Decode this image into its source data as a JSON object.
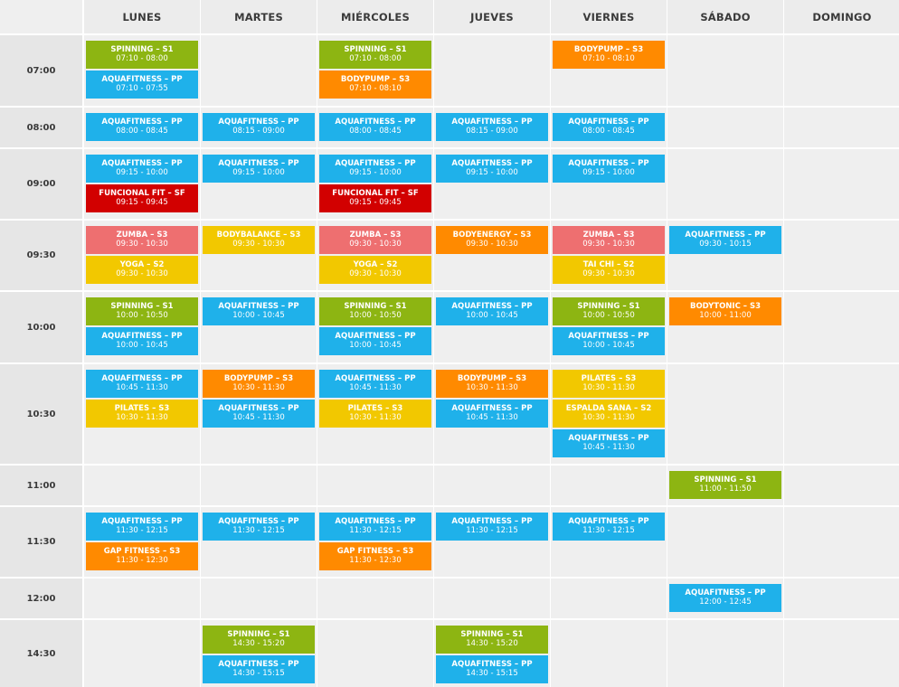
{
  "colors": {
    "aquafitness": "#1fb1ea",
    "spinning": "#8db512",
    "bodypump": "#ff8a00",
    "funcional": "#d20000",
    "zumba": "#ee6f70",
    "yoga": "#f2c800",
    "bodybalance": "#f2c800",
    "bodyenergy": "#ff8a00",
    "taichi": "#f2c800",
    "bodytonic": "#ff8a00",
    "pilates": "#f2c800",
    "espalda": "#f2c800",
    "gap": "#ff8a00"
  },
  "days": [
    "LUNES",
    "MARTES",
    "MIÉRCOLES",
    "JUEVES",
    "VIERNES",
    "SÁBADO",
    "DOMINGO"
  ],
  "rows": [
    {
      "time": "07:00",
      "classes": [
        {
          "day": 0,
          "slot": 0,
          "title": "SPINNING – S1",
          "hours": "07:10 - 08:00",
          "kind": "spinning"
        },
        {
          "day": 0,
          "slot": 1,
          "title": "AQUAFITNESS – PP",
          "hours": "07:10 - 07:55",
          "kind": "aquafitness"
        },
        {
          "day": 2,
          "slot": 0,
          "title": "SPINNING – S1",
          "hours": "07:10 - 08:00",
          "kind": "spinning"
        },
        {
          "day": 2,
          "slot": 1,
          "title": "BODYPUMP – S3",
          "hours": "07:10 - 08:10",
          "kind": "bodypump"
        },
        {
          "day": 4,
          "slot": 0,
          "title": "BODYPUMP – S3",
          "hours": "07:10 - 08:10",
          "kind": "bodypump"
        }
      ]
    },
    {
      "time": "08:00",
      "classes": [
        {
          "day": 0,
          "slot": 0,
          "title": "AQUAFITNESS – PP",
          "hours": "08:00 - 08:45",
          "kind": "aquafitness"
        },
        {
          "day": 1,
          "slot": 0,
          "title": "AQUAFITNESS – PP",
          "hours": "08:15 - 09:00",
          "kind": "aquafitness"
        },
        {
          "day": 2,
          "slot": 0,
          "title": "AQUAFITNESS – PP",
          "hours": "08:00 - 08:45",
          "kind": "aquafitness"
        },
        {
          "day": 3,
          "slot": 0,
          "title": "AQUAFITNESS – PP",
          "hours": "08:15 - 09:00",
          "kind": "aquafitness"
        },
        {
          "day": 4,
          "slot": 0,
          "title": "AQUAFITNESS – PP",
          "hours": "08:00 - 08:45",
          "kind": "aquafitness"
        }
      ]
    },
    {
      "time": "09:00",
      "classes": [
        {
          "day": 0,
          "slot": 0,
          "title": "AQUAFITNESS – PP",
          "hours": "09:15 - 10:00",
          "kind": "aquafitness"
        },
        {
          "day": 0,
          "slot": 1,
          "title": "FUNCIONAL FIT – SF",
          "hours": "09:15 - 09:45",
          "kind": "funcional"
        },
        {
          "day": 1,
          "slot": 0,
          "title": "AQUAFITNESS – PP",
          "hours": "09:15 - 10:00",
          "kind": "aquafitness"
        },
        {
          "day": 2,
          "slot": 0,
          "title": "AQUAFITNESS – PP",
          "hours": "09:15 - 10:00",
          "kind": "aquafitness"
        },
        {
          "day": 2,
          "slot": 1,
          "title": "FUNCIONAL FIT – SF",
          "hours": "09:15 - 09:45",
          "kind": "funcional"
        },
        {
          "day": 3,
          "slot": 0,
          "title": "AQUAFITNESS – PP",
          "hours": "09:15 - 10:00",
          "kind": "aquafitness"
        },
        {
          "day": 4,
          "slot": 0,
          "title": "AQUAFITNESS – PP",
          "hours": "09:15 - 10:00",
          "kind": "aquafitness"
        }
      ]
    },
    {
      "time": "09:30",
      "classes": [
        {
          "day": 0,
          "slot": 0,
          "title": "ZUMBA – S3",
          "hours": "09:30 - 10:30",
          "kind": "zumba"
        },
        {
          "day": 0,
          "slot": 1,
          "title": "YOGA – S2",
          "hours": "09:30 - 10:30",
          "kind": "yoga"
        },
        {
          "day": 1,
          "slot": 0,
          "title": "BODYBALANCE – S3",
          "hours": "09:30 - 10:30",
          "kind": "bodybalance"
        },
        {
          "day": 2,
          "slot": 0,
          "title": "ZUMBA – S3",
          "hours": "09:30 - 10:30",
          "kind": "zumba"
        },
        {
          "day": 2,
          "slot": 1,
          "title": "YOGA – S2",
          "hours": "09:30 - 10:30",
          "kind": "yoga"
        },
        {
          "day": 3,
          "slot": 0,
          "title": "BODYENERGY – S3",
          "hours": "09:30 - 10:30",
          "kind": "bodyenergy"
        },
        {
          "day": 4,
          "slot": 0,
          "title": "ZUMBA – S3",
          "hours": "09:30 - 10:30",
          "kind": "zumba"
        },
        {
          "day": 4,
          "slot": 1,
          "title": "TAI CHI – S2",
          "hours": "09:30 - 10:30",
          "kind": "taichi"
        },
        {
          "day": 5,
          "slot": 0,
          "title": "AQUAFITNESS – PP",
          "hours": "09:30 - 10:15",
          "kind": "aquafitness"
        }
      ]
    },
    {
      "time": "10:00",
      "classes": [
        {
          "day": 0,
          "slot": 0,
          "title": "SPINNING – S1",
          "hours": "10:00 - 10:50",
          "kind": "spinning"
        },
        {
          "day": 0,
          "slot": 1,
          "title": "AQUAFITNESS – PP",
          "hours": "10:00 - 10:45",
          "kind": "aquafitness"
        },
        {
          "day": 1,
          "slot": 0,
          "title": "AQUAFITNESS – PP",
          "hours": "10:00 - 10:45",
          "kind": "aquafitness"
        },
        {
          "day": 2,
          "slot": 0,
          "title": "SPINNING – S1",
          "hours": "10:00 - 10:50",
          "kind": "spinning"
        },
        {
          "day": 2,
          "slot": 1,
          "title": "AQUAFITNESS – PP",
          "hours": "10:00 - 10:45",
          "kind": "aquafitness"
        },
        {
          "day": 3,
          "slot": 0,
          "title": "AQUAFITNESS – PP",
          "hours": "10:00 - 10:45",
          "kind": "aquafitness"
        },
        {
          "day": 4,
          "slot": 0,
          "title": "SPINNING – S1",
          "hours": "10:00 - 10:50",
          "kind": "spinning"
        },
        {
          "day": 4,
          "slot": 1,
          "title": "AQUAFITNESS – PP",
          "hours": "10:00 - 10:45",
          "kind": "aquafitness"
        },
        {
          "day": 5,
          "slot": 0,
          "title": "BODYTONIC – S3",
          "hours": "10:00 - 11:00",
          "kind": "bodytonic"
        }
      ]
    },
    {
      "time": "10:30",
      "classes": [
        {
          "day": 0,
          "slot": 0,
          "title": "AQUAFITNESS – PP",
          "hours": "10:45 - 11:30",
          "kind": "aquafitness"
        },
        {
          "day": 0,
          "slot": 1,
          "title": "PILATES – S3",
          "hours": "10:30 - 11:30",
          "kind": "pilates"
        },
        {
          "day": 1,
          "slot": 0,
          "title": "BODYPUMP – S3",
          "hours": "10:30 - 11:30",
          "kind": "bodypump"
        },
        {
          "day": 1,
          "slot": 1,
          "title": "AQUAFITNESS – PP",
          "hours": "10:45 - 11:30",
          "kind": "aquafitness"
        },
        {
          "day": 2,
          "slot": 0,
          "title": "AQUAFITNESS – PP",
          "hours": "10:45 - 11:30",
          "kind": "aquafitness"
        },
        {
          "day": 2,
          "slot": 1,
          "title": "PILATES – S3",
          "hours": "10:30 - 11:30",
          "kind": "pilates"
        },
        {
          "day": 3,
          "slot": 0,
          "title": "BODYPUMP – S3",
          "hours": "10:30 - 11:30",
          "kind": "bodypump"
        },
        {
          "day": 3,
          "slot": 1,
          "title": "AQUAFITNESS – PP",
          "hours": "10:45 - 11:30",
          "kind": "aquafitness"
        },
        {
          "day": 4,
          "slot": 0,
          "title": "PILATES – S3",
          "hours": "10:30 - 11:30",
          "kind": "pilates"
        },
        {
          "day": 4,
          "slot": 1,
          "title": "ESPALDA SANA – S2",
          "hours": "10:30 - 11:30",
          "kind": "espalda"
        },
        {
          "day": 4,
          "slot": 2,
          "title": "AQUAFITNESS – PP",
          "hours": "10:45 - 11:30",
          "kind": "aquafitness"
        }
      ]
    },
    {
      "time": "11:00",
      "classes": [
        {
          "day": 5,
          "slot": 0,
          "title": "SPINNING – S1",
          "hours": "11:00 - 11:50",
          "kind": "spinning"
        }
      ]
    },
    {
      "time": "11:30",
      "classes": [
        {
          "day": 0,
          "slot": 0,
          "title": "AQUAFITNESS – PP",
          "hours": "11:30 - 12:15",
          "kind": "aquafitness"
        },
        {
          "day": 0,
          "slot": 1,
          "title": "GAP FITNESS – S3",
          "hours": "11:30 - 12:30",
          "kind": "gap"
        },
        {
          "day": 1,
          "slot": 0,
          "title": "AQUAFITNESS – PP",
          "hours": "11:30 - 12:15",
          "kind": "aquafitness"
        },
        {
          "day": 2,
          "slot": 0,
          "title": "AQUAFITNESS – PP",
          "hours": "11:30 - 12:15",
          "kind": "aquafitness"
        },
        {
          "day": 2,
          "slot": 1,
          "title": "GAP FITNESS – S3",
          "hours": "11:30 - 12:30",
          "kind": "gap"
        },
        {
          "day": 3,
          "slot": 0,
          "title": "AQUAFITNESS – PP",
          "hours": "11:30 - 12:15",
          "kind": "aquafitness"
        },
        {
          "day": 4,
          "slot": 0,
          "title": "AQUAFITNESS – PP",
          "hours": "11:30 - 12:15",
          "kind": "aquafitness"
        }
      ]
    },
    {
      "time": "12:00",
      "classes": [
        {
          "day": 5,
          "slot": 0,
          "title": "AQUAFITNESS – PP",
          "hours": "12:00 - 12:45",
          "kind": "aquafitness"
        }
      ]
    },
    {
      "time": "14:30",
      "classes": [
        {
          "day": 1,
          "slot": 0,
          "title": "SPINNING – S1",
          "hours": "14:30 - 15:20",
          "kind": "spinning"
        },
        {
          "day": 1,
          "slot": 1,
          "title": "AQUAFITNESS – PP",
          "hours": "14:30 - 15:15",
          "kind": "aquafitness"
        },
        {
          "day": 3,
          "slot": 0,
          "title": "SPINNING – S1",
          "hours": "14:30 - 15:20",
          "kind": "spinning"
        },
        {
          "day": 3,
          "slot": 1,
          "title": "AQUAFITNESS – PP",
          "hours": "14:30 - 15:15",
          "kind": "aquafitness"
        }
      ]
    }
  ]
}
